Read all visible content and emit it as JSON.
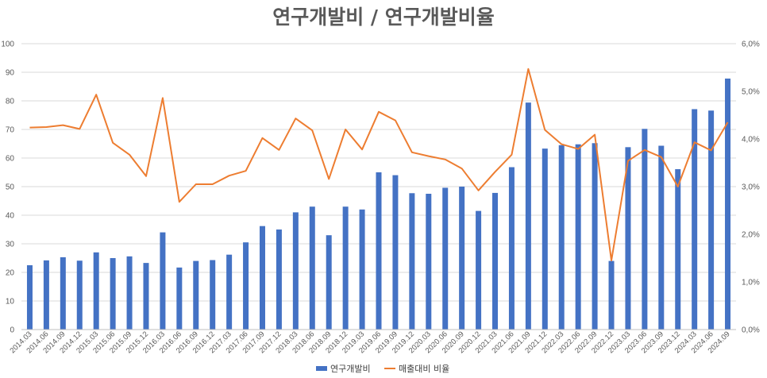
{
  "chart_data": {
    "type": "bar+line",
    "title": "연구개발비 / 연구개발비율",
    "categories": [
      "2014.03",
      "2014.06",
      "2014.09",
      "2014.12",
      "2015.03",
      "2015.06",
      "2015.09",
      "2015.12",
      "2016.03",
      "2016.06",
      "2016.09",
      "2016.12",
      "2017.03",
      "2017.06",
      "2017.09",
      "2017.12",
      "2018.03",
      "2018.06",
      "2018.09",
      "2018.12",
      "2019.03",
      "2019.06",
      "2019.09",
      "2019.12",
      "2020.03",
      "2020.06",
      "2020.09",
      "2020.12",
      "2021.03",
      "2021.06",
      "2021.09",
      "2021.12",
      "2022.03",
      "2022.06",
      "2022.09",
      "2022.12",
      "2023.03",
      "2023.06",
      "2023.09",
      "2023.12",
      "2024.03",
      "2024.06",
      "2024.09"
    ],
    "series": [
      {
        "name": "연구개발비",
        "type": "bar",
        "axis": "left",
        "color": "#4472C4",
        "values": [
          22.5,
          24.2,
          25.3,
          24.1,
          27.0,
          25.0,
          25.6,
          23.3,
          34.0,
          21.7,
          24.0,
          24.3,
          26.2,
          30.5,
          36.2,
          35.0,
          41.0,
          43.0,
          33.0,
          43.0,
          42.0,
          55.0,
          54.0,
          47.7,
          47.5,
          49.6,
          50.0,
          41.5,
          47.8,
          56.8,
          79.4,
          63.3,
          64.5,
          64.8,
          65.2,
          24.0,
          63.8,
          70.2,
          64.3,
          56.1,
          77.1,
          76.6,
          87.8
        ]
      },
      {
        "name": "매출대비 비율",
        "type": "line",
        "axis": "right",
        "color": "#ED7D31",
        "values": [
          4.24,
          4.25,
          4.29,
          4.21,
          4.93,
          3.92,
          3.67,
          3.22,
          4.86,
          2.68,
          3.05,
          3.05,
          3.23,
          3.33,
          4.02,
          3.77,
          4.43,
          4.18,
          3.16,
          4.2,
          3.78,
          4.57,
          4.39,
          3.72,
          3.64,
          3.57,
          3.38,
          2.92,
          3.31,
          3.67,
          5.47,
          4.19,
          3.89,
          3.79,
          4.09,
          1.45,
          3.54,
          3.77,
          3.62,
          3.0,
          3.93,
          3.76,
          4.35
        ]
      }
    ],
    "left_axis": {
      "ylim": [
        0,
        100
      ],
      "ticks": [
        "0",
        "10",
        "20",
        "30",
        "40",
        "50",
        "60",
        "70",
        "80",
        "90",
        "100"
      ]
    },
    "right_axis": {
      "ylim": [
        0,
        6
      ],
      "ticks": [
        "0,0%",
        "1,0%",
        "2,0%",
        "3,0%",
        "4,0%",
        "5,0%",
        "6,0%"
      ]
    },
    "grid": true,
    "legend_position": "bottom"
  }
}
